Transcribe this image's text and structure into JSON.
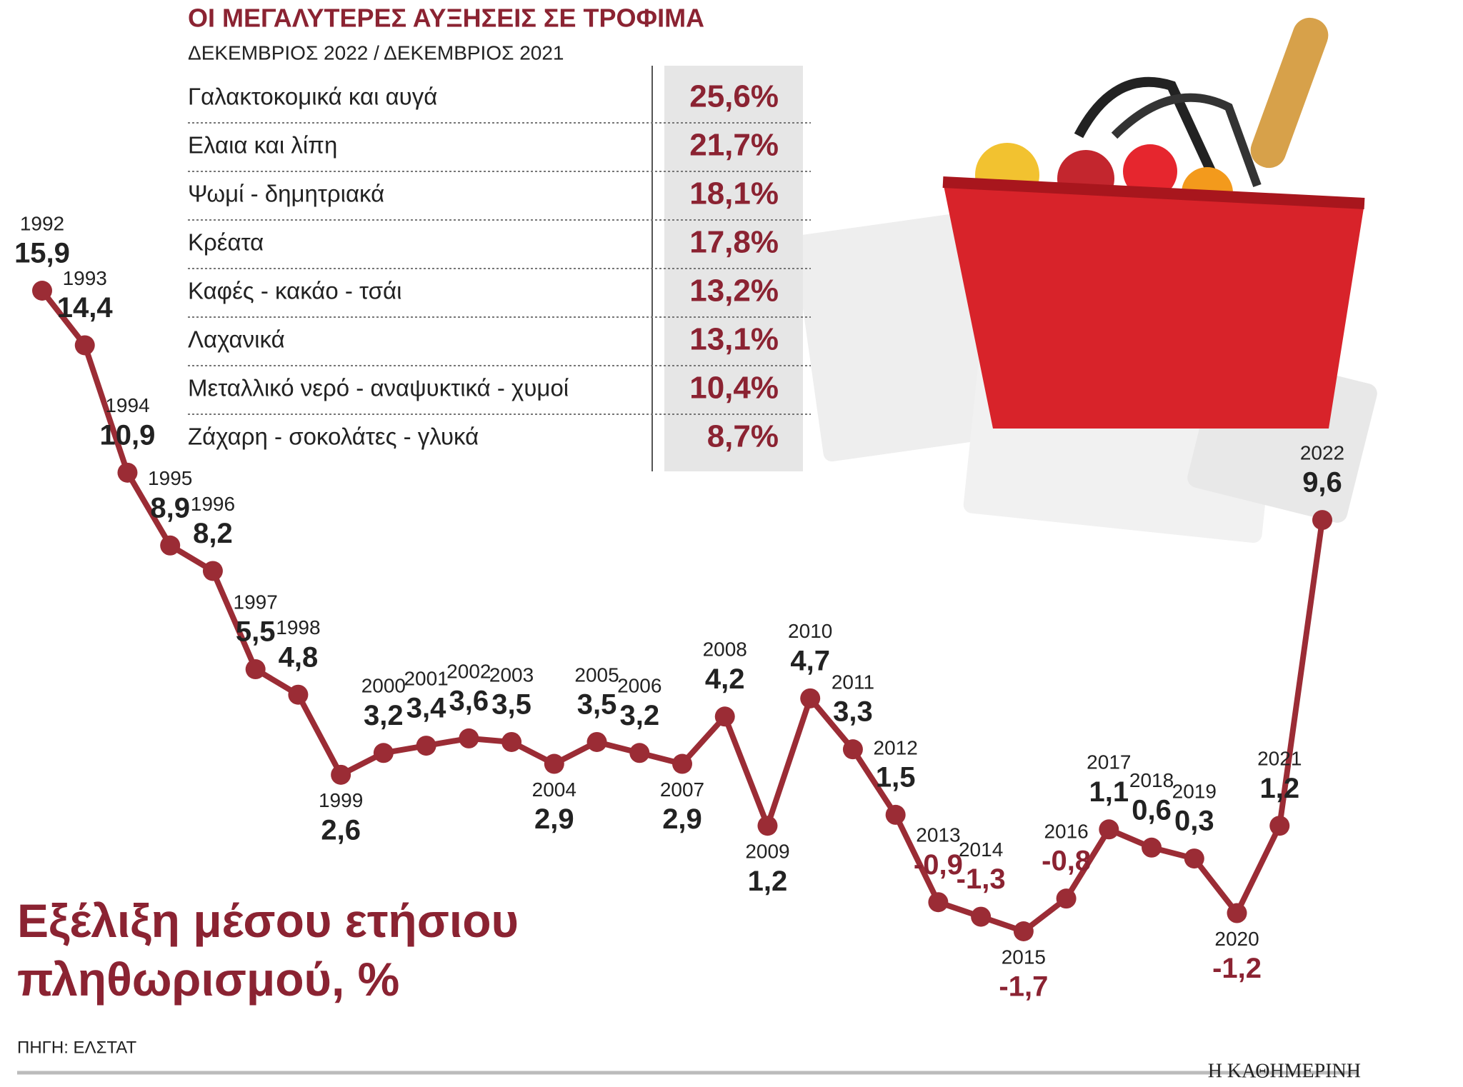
{
  "chart_data": {
    "type": "line",
    "title": "Εξέλιξη μέσου ετήσιου πληθωρισμού, %",
    "source": "ΠΗΓΗ: ΕΛΣΤΑΤ",
    "categories": [
      "1992",
      "1993",
      "1994",
      "1995",
      "1996",
      "1997",
      "1998",
      "1999",
      "2000",
      "2001",
      "2002",
      "2003",
      "2004",
      "2005",
      "2006",
      "2007",
      "2008",
      "2009",
      "2010",
      "2011",
      "2012",
      "2013",
      "2014",
      "2015",
      "2016",
      "2017",
      "2018",
      "2019",
      "2020",
      "2021",
      "2022"
    ],
    "series": [
      {
        "color": "#9b2c35",
        "values": [
          15.9,
          14.4,
          10.9,
          8.9,
          8.2,
          5.5,
          4.8,
          2.6,
          3.2,
          3.4,
          3.6,
          3.5,
          2.9,
          3.5,
          3.2,
          2.9,
          4.2,
          1.2,
          4.7,
          3.3,
          1.5,
          -0.9,
          -1.3,
          -1.7,
          -0.8,
          1.1,
          0.6,
          0.3,
          -1.2,
          1.2,
          9.6
        ],
        "value_labels": [
          "15,9",
          "14,4",
          "10,9",
          "8,9",
          "8,2",
          "5,5",
          "4,8",
          "2,6",
          "3,2",
          "3,4",
          "3,6",
          "3,5",
          "2,9",
          "3,5",
          "3,2",
          "2,9",
          "4,2",
          "1,2",
          "4,7",
          "3,3",
          "1,5",
          "-0,9",
          "-1,3",
          "-1,7",
          "-0,8",
          "1,1",
          "0,6",
          "0,3",
          "-1,2",
          "1,2",
          "9,6"
        ]
      }
    ]
  },
  "table": {
    "title": "ΟΙ ΜΕΓΑΛΥΤΕΡΕΣ ΑΥΞΗΣΕΙΣ ΣΕ ΤΡΟΦΙΜΑ",
    "subtitle": "ΔΕΚΕΜΒΡΙΟΣ 2022 / ΔΕΚΕΜΒΡΙΟΣ 2021",
    "rows": [
      [
        "Γαλακτοκομικά και αυγά",
        "25,6%"
      ],
      [
        "Ελαια και λίπη",
        "21,7%"
      ],
      [
        "Ψωμί - δημητριακά",
        "18,1%"
      ],
      [
        "Κρέατα",
        "17,8%"
      ],
      [
        "Καφές - κακάο - τσάι",
        "13,2%"
      ],
      [
        "Λαχανικά",
        "13,1%"
      ],
      [
        "Μεταλλικό νερό - αναψυκτικά - χυμοί",
        "10,4%"
      ],
      [
        "Ζάχαρη - σοκολάτες - γλυκά",
        "8,7%"
      ]
    ]
  },
  "brand": "Η ΚΑΘΗΜΕΡΙΝΗ"
}
